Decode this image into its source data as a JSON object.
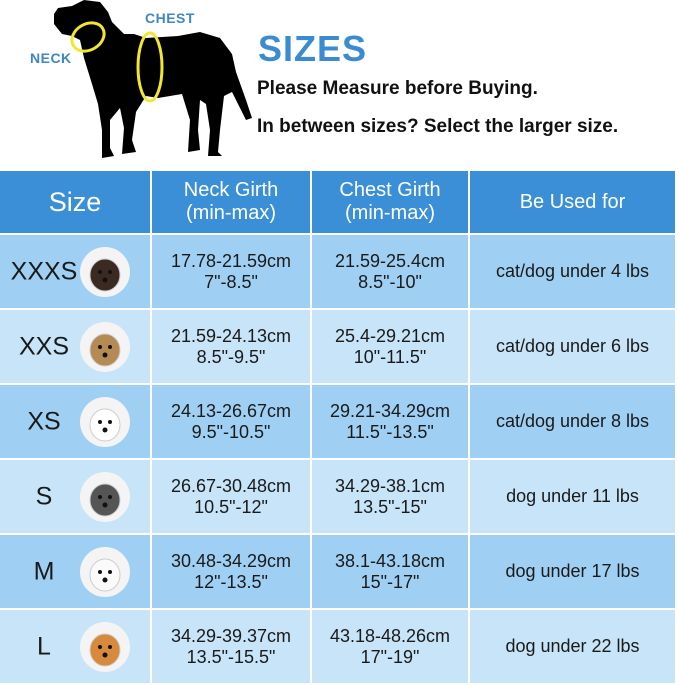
{
  "diagram": {
    "neck_label": "NECK",
    "chest_label": "CHEST"
  },
  "header": {
    "title": "SIZES",
    "line1": "Please Measure before Buying.",
    "line2": "In between sizes? Select the larger size."
  },
  "table": {
    "columns": [
      {
        "line1": "Size",
        "line2": ""
      },
      {
        "line1": "Neck Girth",
        "line2": "(min-max)"
      },
      {
        "line1": "Chest Girth",
        "line2": "(min-max)"
      },
      {
        "line1": "Be Used for",
        "line2": ""
      }
    ],
    "rows": [
      {
        "size": "XXXS",
        "neck_cm": "17.78-21.59cm",
        "neck_in": "7\"-8.5\"",
        "chest_cm": "21.59-25.4cm",
        "chest_in": "8.5\"-10\"",
        "use": "cat/dog under 4 lbs",
        "photo": "chihuahua"
      },
      {
        "size": "XXS",
        "neck_cm": "21.59-24.13cm",
        "neck_in": "8.5\"-9.5\"",
        "chest_cm": "25.4-29.21cm",
        "chest_in": "10\"-11.5\"",
        "use": "cat/dog under 6 lbs",
        "photo": "yorkshire-terrier"
      },
      {
        "size": "XS",
        "neck_cm": "24.13-26.67cm",
        "neck_in": "9.5\"-10.5\"",
        "chest_cm": "29.21-34.29cm",
        "chest_in": "11.5\"-13.5\"",
        "use": "cat/dog under 8 lbs",
        "photo": "maltese"
      },
      {
        "size": "S",
        "neck_cm": "26.67-30.48cm",
        "neck_in": "10.5\"-12\"",
        "chest_cm": "34.29-38.1cm",
        "chest_in": "13.5\"-15\"",
        "use": "dog under 11 lbs",
        "photo": "schnauzer"
      },
      {
        "size": "M",
        "neck_cm": "30.48-34.29cm",
        "neck_in": "12\"-13.5\"",
        "chest_cm": "38.1-43.18cm",
        "chest_in": "15\"-17\"",
        "use": "dog under 17 lbs",
        "photo": "bichon"
      },
      {
        "size": "L",
        "neck_cm": "34.29-39.37cm",
        "neck_in": "13.5\"-15.5\"",
        "chest_cm": "43.18-48.26cm",
        "chest_in": "17\"-19\"",
        "use": "dog under 22 lbs",
        "photo": "corgi"
      }
    ]
  },
  "colors": {
    "header": "#3b8fd6",
    "row_dark": "#9fd0f3",
    "row_light": "#c7e4f9",
    "title": "#3a8bd0",
    "ring": "#f2e630"
  }
}
